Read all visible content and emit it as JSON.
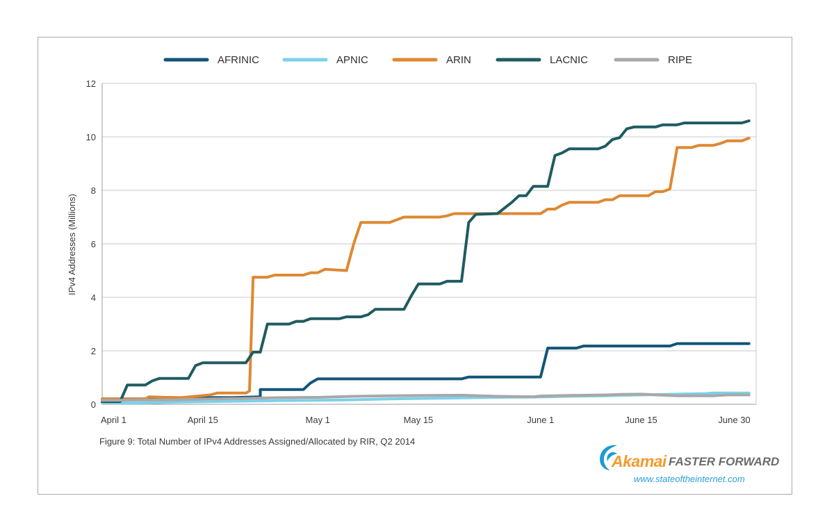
{
  "chart_data": {
    "type": "line",
    "xlabel": "",
    "ylabel": "IPv4 Addresses (Millions)",
    "ylim": [
      0,
      12
    ],
    "y_ticks": [
      "0",
      "2",
      "4",
      "6",
      "8",
      "10",
      "12"
    ],
    "x_range_days": [
      0,
      91
    ],
    "x_ticks": [
      {
        "label": "April 1",
        "day": 0
      },
      {
        "label": "April 15",
        "day": 14
      },
      {
        "label": "May 1",
        "day": 30
      },
      {
        "label": "May 15",
        "day": 44
      },
      {
        "label": "June 1",
        "day": 61
      },
      {
        "label": "June 15",
        "day": 75
      },
      {
        "label": "June 30",
        "day": 90
      }
    ],
    "grid": true,
    "legend_position": "top",
    "series": [
      {
        "name": "AFRINIC",
        "color": "#125478",
        "points": [
          [
            0,
            0.2
          ],
          [
            3,
            0.2
          ],
          [
            6,
            0.2
          ],
          [
            10,
            0.22
          ],
          [
            14,
            0.25
          ],
          [
            18,
            0.25
          ],
          [
            22,
            0.28
          ],
          [
            22,
            0.55
          ],
          [
            26,
            0.55
          ],
          [
            28,
            0.55
          ],
          [
            29,
            0.8
          ],
          [
            30,
            0.95
          ],
          [
            35,
            0.95
          ],
          [
            40,
            0.95
          ],
          [
            45,
            0.95
          ],
          [
            50,
            0.95
          ],
          [
            51,
            1.02
          ],
          [
            56,
            1.02
          ],
          [
            60,
            1.02
          ],
          [
            61,
            1.02
          ],
          [
            62,
            2.1
          ],
          [
            66,
            2.1
          ],
          [
            67,
            2.18
          ],
          [
            70,
            2.18
          ],
          [
            75,
            2.18
          ],
          [
            79,
            2.18
          ],
          [
            80,
            2.27
          ],
          [
            85,
            2.27
          ],
          [
            90,
            2.27
          ]
        ]
      },
      {
        "name": "APNIC",
        "color": "#7dd0ea",
        "points": [
          [
            0,
            0.05
          ],
          [
            5,
            0.05
          ],
          [
            10,
            0.08
          ],
          [
            15,
            0.1
          ],
          [
            20,
            0.12
          ],
          [
            25,
            0.14
          ],
          [
            30,
            0.15
          ],
          [
            35,
            0.17
          ],
          [
            40,
            0.2
          ],
          [
            45,
            0.22
          ],
          [
            50,
            0.24
          ],
          [
            55,
            0.26
          ],
          [
            60,
            0.27
          ],
          [
            65,
            0.3
          ],
          [
            70,
            0.32
          ],
          [
            75,
            0.35
          ],
          [
            80,
            0.38
          ],
          [
            84,
            0.4
          ],
          [
            85,
            0.42
          ],
          [
            90,
            0.42
          ]
        ]
      },
      {
        "name": "ARIN",
        "color": "#de8832",
        "points": [
          [
            0,
            0.2
          ],
          [
            6,
            0.2
          ],
          [
            6.5,
            0.28
          ],
          [
            9,
            0.26
          ],
          [
            11,
            0.25
          ],
          [
            13,
            0.3
          ],
          [
            15,
            0.35
          ],
          [
            16,
            0.42
          ],
          [
            20,
            0.42
          ],
          [
            20.5,
            0.5
          ],
          [
            21,
            4.75
          ],
          [
            23,
            4.75
          ],
          [
            24,
            4.83
          ],
          [
            28,
            4.83
          ],
          [
            29,
            4.92
          ],
          [
            30,
            4.92
          ],
          [
            31,
            5.05
          ],
          [
            34,
            5.0
          ],
          [
            35,
            6.0
          ],
          [
            36,
            6.8
          ],
          [
            39,
            6.8
          ],
          [
            40,
            6.8
          ],
          [
            42,
            7.0
          ],
          [
            47,
            7.0
          ],
          [
            48,
            7.05
          ],
          [
            49,
            7.13
          ],
          [
            55,
            7.13
          ],
          [
            61,
            7.13
          ],
          [
            62,
            7.3
          ],
          [
            63,
            7.3
          ],
          [
            64,
            7.45
          ],
          [
            65,
            7.55
          ],
          [
            69,
            7.55
          ],
          [
            70,
            7.65
          ],
          [
            71,
            7.65
          ],
          [
            72,
            7.8
          ],
          [
            76,
            7.8
          ],
          [
            77,
            7.95
          ],
          [
            78,
            7.95
          ],
          [
            79,
            8.05
          ],
          [
            80,
            9.6
          ],
          [
            82,
            9.6
          ],
          [
            83,
            9.68
          ],
          [
            85,
            9.68
          ],
          [
            86,
            9.75
          ],
          [
            87,
            9.85
          ],
          [
            89,
            9.85
          ],
          [
            90,
            9.95
          ]
        ]
      },
      {
        "name": "LACNIC",
        "color": "#1f5b62",
        "points": [
          [
            0,
            0.1
          ],
          [
            2.5,
            0.1
          ],
          [
            3.5,
            0.72
          ],
          [
            6,
            0.72
          ],
          [
            7,
            0.88
          ],
          [
            8,
            0.97
          ],
          [
            12,
            0.97
          ],
          [
            13,
            1.45
          ],
          [
            14,
            1.55
          ],
          [
            19,
            1.55
          ],
          [
            20,
            1.55
          ],
          [
            21,
            1.95
          ],
          [
            22,
            1.95
          ],
          [
            23,
            3.0
          ],
          [
            26,
            3.0
          ],
          [
            27,
            3.1
          ],
          [
            28,
            3.1
          ],
          [
            29,
            3.2
          ],
          [
            33,
            3.2
          ],
          [
            34,
            3.27
          ],
          [
            36,
            3.27
          ],
          [
            37,
            3.35
          ],
          [
            38,
            3.55
          ],
          [
            42,
            3.55
          ],
          [
            43,
            4.05
          ],
          [
            44,
            4.5
          ],
          [
            47,
            4.5
          ],
          [
            48,
            4.6
          ],
          [
            50,
            4.6
          ],
          [
            51,
            6.8
          ],
          [
            52,
            7.1
          ],
          [
            55,
            7.13
          ],
          [
            57,
            7.55
          ],
          [
            58,
            7.8
          ],
          [
            59,
            7.8
          ],
          [
            60,
            8.15
          ],
          [
            62,
            8.15
          ],
          [
            63,
            9.3
          ],
          [
            64,
            9.4
          ],
          [
            65,
            9.55
          ],
          [
            69,
            9.55
          ],
          [
            70,
            9.65
          ],
          [
            71,
            9.9
          ],
          [
            72,
            9.97
          ],
          [
            73,
            10.3
          ],
          [
            74,
            10.37
          ],
          [
            77,
            10.37
          ],
          [
            78,
            10.45
          ],
          [
            80,
            10.45
          ],
          [
            81,
            10.52
          ],
          [
            89,
            10.52
          ],
          [
            90,
            10.6
          ]
        ]
      },
      {
        "name": "RIPE",
        "color": "#a8a8a8",
        "points": [
          [
            0,
            0.15
          ],
          [
            10,
            0.17
          ],
          [
            15,
            0.2
          ],
          [
            20,
            0.22
          ],
          [
            25,
            0.25
          ],
          [
            30,
            0.26
          ],
          [
            35,
            0.3
          ],
          [
            40,
            0.32
          ],
          [
            45,
            0.33
          ],
          [
            50,
            0.34
          ],
          [
            55,
            0.3
          ],
          [
            60,
            0.28
          ],
          [
            61,
            0.31
          ],
          [
            65,
            0.33
          ],
          [
            70,
            0.35
          ],
          [
            72,
            0.37
          ],
          [
            75,
            0.38
          ],
          [
            78,
            0.34
          ],
          [
            80,
            0.32
          ],
          [
            85,
            0.32
          ],
          [
            87,
            0.35
          ],
          [
            90,
            0.35
          ]
        ]
      }
    ]
  },
  "caption": "Figure 9: Total Number of IPv4 Addresses Assigned/Allocated by RIR, Q2 2014",
  "brand": {
    "name": "Akamai",
    "tagline": "FASTER FORWARD",
    "url": "www.stateoftheinternet.com",
    "logo_icon": "akamai-swoosh-icon",
    "name_color": "#f39a2c",
    "logo_color": "#1e9ad6"
  }
}
